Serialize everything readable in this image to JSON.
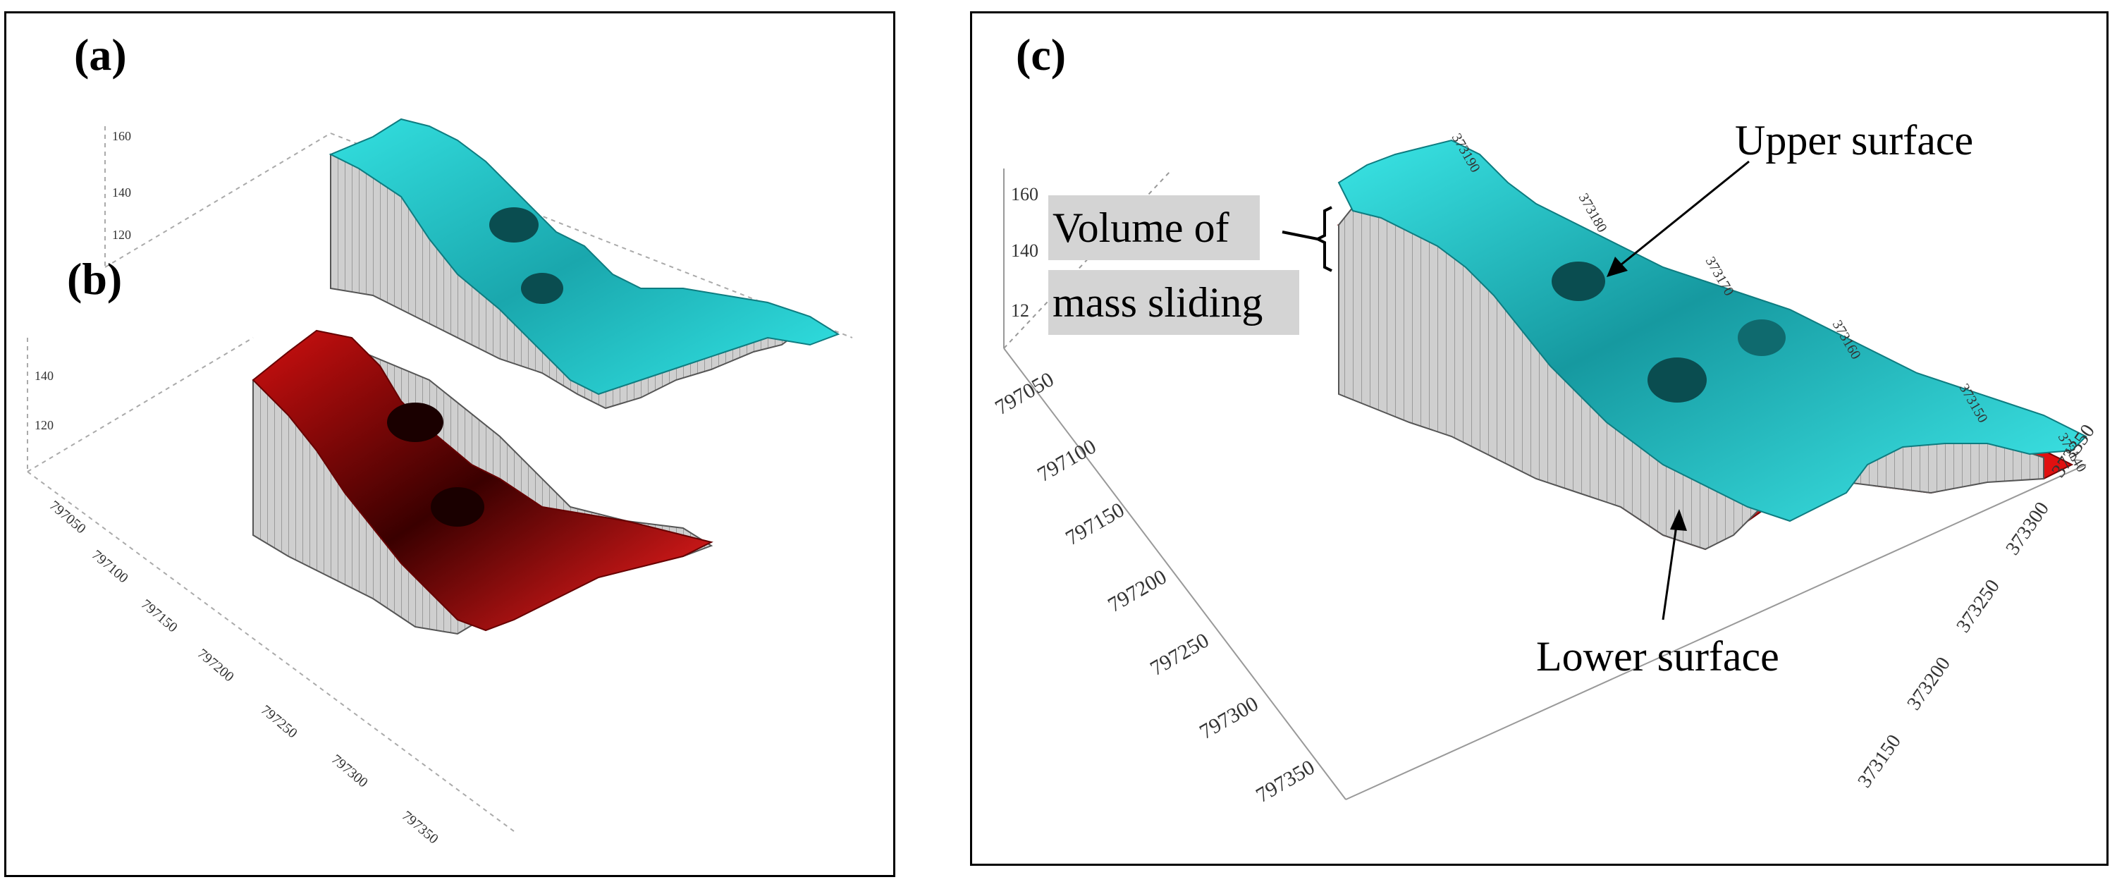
{
  "panels": {
    "a": {
      "label": "(a)"
    },
    "b": {
      "label": "(b)"
    },
    "c": {
      "label": "(c)"
    }
  },
  "annotations": {
    "upper_surface": "Upper surface",
    "lower_surface": "Lower surface",
    "volume_line1": "Volume of",
    "volume_line2": "mass sliding"
  },
  "axes": {
    "z_ticks_left": [
      "160",
      "140",
      "120"
    ],
    "y_ticks_left": [
      "797050",
      "797100",
      "797150",
      "797200",
      "797250",
      "797300",
      "797350"
    ],
    "z_ticks_right": [
      "160",
      "140",
      "12"
    ],
    "y_ticks_right": [
      "797050",
      "797100",
      "797150",
      "797200",
      "797250",
      "797300",
      "797350"
    ],
    "x_ticks_right": [
      "373150",
      "373200",
      "373250",
      "373300",
      "373350"
    ],
    "top_ticks_right": [
      "373190",
      "373180",
      "373170",
      "373160",
      "373150",
      "373140"
    ]
  },
  "colors": {
    "upper": "#2fd4d4",
    "upper_dark": "#0a5a5e",
    "lower": "#e01010",
    "lower_dark": "#3a0000",
    "wall": "#c8c8c8"
  }
}
